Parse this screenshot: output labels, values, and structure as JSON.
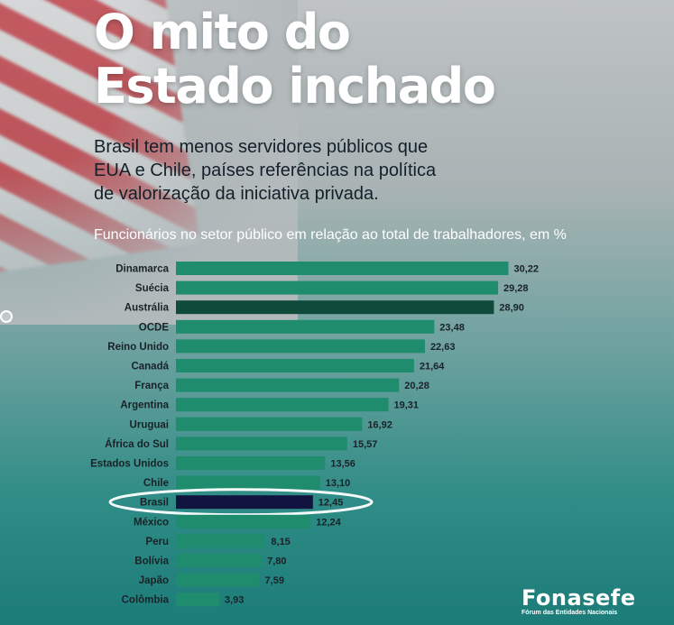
{
  "heading": {
    "title_line1": "O mito do",
    "title_line2": "Estado inchado",
    "subtitle_lines": [
      "Brasil tem menos servidores públicos que",
      "EUA e Chile, países referências na política",
      "de valorização da iniciativa privada."
    ]
  },
  "chart_data": {
    "type": "bar",
    "orientation": "horizontal",
    "title": "Funcionários no setor público em relação ao total de trabalhadores, em %",
    "categories": [
      "Dinamarca",
      "Suécia",
      "Austrália",
      "OCDE",
      "Reino Unido",
      "Canadá",
      "França",
      "Argentina",
      "Uruguai",
      "África do Sul",
      "Estados Unidos",
      "Chile",
      "Brasil",
      "México",
      "Peru",
      "Bolívia",
      "Japão",
      "Colômbia"
    ],
    "values": [
      30.22,
      29.28,
      28.9,
      23.48,
      22.63,
      21.64,
      20.28,
      19.31,
      16.92,
      15.57,
      13.56,
      13.1,
      12.45,
      12.24,
      8.15,
      7.8,
      7.59,
      3.93
    ],
    "value_labels": [
      "30,22",
      "29,28",
      "28,90",
      "23,48",
      "22,63",
      "21,64",
      "20,28",
      "19,31",
      "16,92",
      "15,57",
      "13,56",
      "13,10",
      "12,45",
      "12,24",
      "8,15",
      "7,80",
      "7,59",
      "3,93"
    ],
    "xlim": [
      0,
      31
    ],
    "highlighted": [
      "Austrália",
      "Brasil"
    ],
    "colors": {
      "bar": "#1f8c6e",
      "bar_dark_green": "#0f4a3a",
      "bar_brazil": "#11143f",
      "highlight_ring": "#ffffff"
    },
    "grid": false,
    "legend": "none"
  },
  "logo": {
    "name": "Fonasefe",
    "tagline": "Fórum das Entidades Nacionais"
  }
}
